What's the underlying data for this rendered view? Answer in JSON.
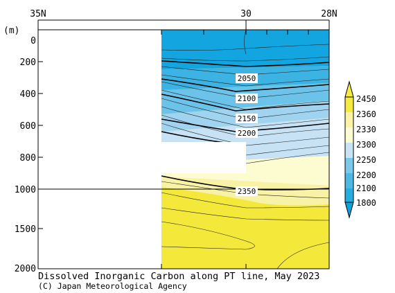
{
  "chart_data": {
    "type": "heatmap",
    "title": "Dissolved Inorganic Carbon along PT line, May 2023",
    "credit": "(C) Japan Meteorological Agency",
    "x_ticks": [
      {
        "label": "35N",
        "value": 35
      },
      {
        "label": "30",
        "value": 30
      },
      {
        "label": "28N",
        "value": 28
      }
    ],
    "x_range": [
      35,
      28
    ],
    "y_unit": "(m)",
    "y_ticks": [
      "0",
      "200",
      "400",
      "600",
      "800",
      "1000",
      "1500",
      "2000"
    ],
    "y_scale": "linear 0-1000 m, compressed 1000-2000 m",
    "colorbar": {
      "levels": [
        "1800",
        "2100",
        "2200",
        "2250",
        "2300",
        "2330",
        "2360",
        "2450"
      ],
      "colors": [
        "#0aa3de",
        "#25addf",
        "#4fb8e2",
        "#7ac9eb",
        "#c8e4f4",
        "#fdfbd0",
        "#faf3a5",
        "#f5ea3d"
      ]
    },
    "contour_labels": [
      {
        "text": "2050",
        "x_lat": 30.1,
        "depth": 310
      },
      {
        "text": "2100",
        "x_lat": 30.1,
        "depth": 430
      },
      {
        "text": "2150",
        "x_lat": 30.1,
        "depth": 560
      },
      {
        "text": "2200",
        "x_lat": 30.1,
        "depth": 670
      },
      {
        "text": "2350",
        "x_lat": 30.1,
        "depth": 1010
      }
    ]
  }
}
